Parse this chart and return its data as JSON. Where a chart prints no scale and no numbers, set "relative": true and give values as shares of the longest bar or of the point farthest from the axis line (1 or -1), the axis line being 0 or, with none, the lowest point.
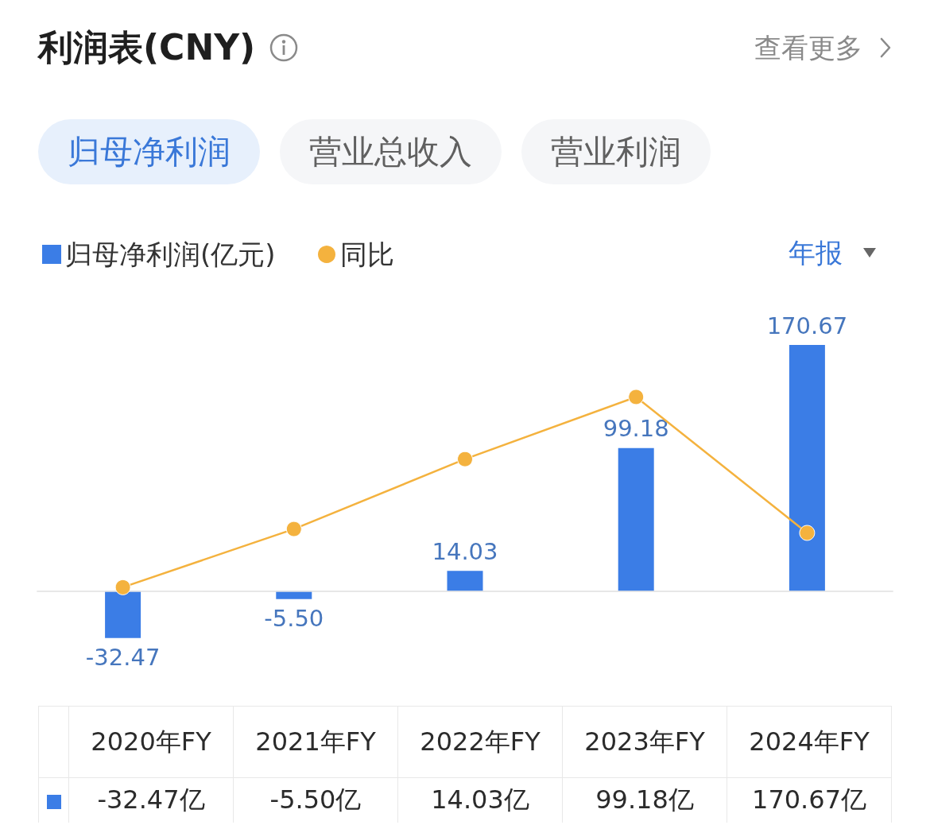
{
  "chart_data": [
    {
      "type": "bar",
      "title": "利润表(CNY)",
      "categories": [
        "2020年FY",
        "2021年FY",
        "2022年FY",
        "2023年FY",
        "2024年FY"
      ],
      "series": [
        {
          "name": "归母净利润(亿元)",
          "color": "#3b7de6",
          "values": [
            -32.47,
            -5.5,
            14.03,
            99.18,
            170.67
          ],
          "value_labels": [
            "-32.47",
            "-5.50",
            "14.03",
            "99.18",
            "170.67"
          ]
        }
      ],
      "legend": "top left",
      "grid": false,
      "annotations": [
        "查看更多",
        "归母净利润",
        "营业总收入",
        "营业利润",
        "年报",
        "-32.47亿",
        "-5.50亿",
        "14.03亿",
        "99.18亿",
        "170.67亿"
      ]
    },
    {
      "type": "line",
      "relative": true,
      "categories": [
        null,
        null,
        null,
        null,
        null
      ],
      "series": [
        {
          "name": "同比",
          "color": "#f4b23e",
          "values": [
            0.02,
            0.32,
            0.68,
            1,
            0.3
          ]
        }
      ],
      "legend": "top left",
      "grid": false,
      "marker": "circle",
      "line_style": "solid"
    }
  ]
}
